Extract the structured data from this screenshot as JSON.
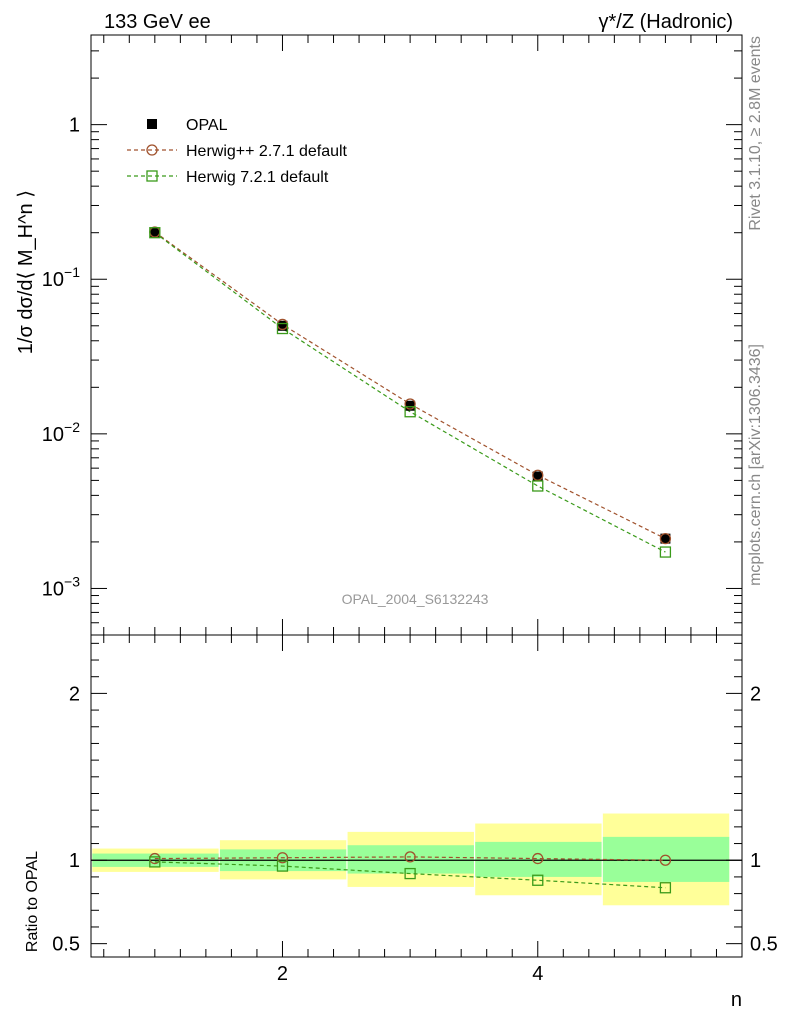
{
  "header": {
    "left": "133 GeV ee",
    "right": "γ*/Z (Hadronic)"
  },
  "side_text": {
    "rivet": "Rivet 3.1.10, ≥ 2.8M events",
    "mcplots": "mcplots.cern.ch [arXiv:1306.3436]"
  },
  "watermark": "OPAL_2004_S6132243",
  "chart_data": [
    {
      "type": "scatter",
      "panel": "main",
      "ylabel": "1/σ dσ/d⟨ M_H^n ⟩",
      "yscale": "log",
      "xlim": [
        0.5,
        5.6
      ],
      "ylim": [
        0.0005,
        3.8
      ],
      "ytick_labels": [
        "10^-3",
        "10^-2",
        "10^-1",
        "1"
      ],
      "x": [
        1,
        2,
        3,
        4,
        5
      ],
      "series": [
        {
          "name": "OPAL",
          "values": [
            0.2,
            0.05,
            0.0152,
            0.0053,
            0.0021
          ],
          "color": "#000000",
          "marker": "filled-square"
        },
        {
          "name": "Herwig++ 2.7.1 default",
          "values": [
            0.202,
            0.051,
            0.0156,
            0.0054,
            0.0021
          ],
          "color": "#a0522d",
          "marker": "open-circle",
          "line": "dashed"
        },
        {
          "name": "Herwig 7.2.1 default",
          "values": [
            0.2,
            0.048,
            0.0139,
            0.0046,
            0.00172
          ],
          "color": "#3a9a1a",
          "marker": "open-square",
          "line": "dashed"
        }
      ],
      "legend_position": "top-left"
    },
    {
      "type": "line",
      "panel": "ratio",
      "ylabel": "Ratio to OPAL",
      "xlabel": "n",
      "xlim": [
        0.5,
        5.6
      ],
      "ylim": [
        0.42,
        2.35
      ],
      "x_tick_labels": [
        "2",
        "4"
      ],
      "y_tick_labels": [
        "0.5",
        "1",
        "2"
      ],
      "x": [
        1,
        2,
        3,
        4,
        5
      ],
      "bands": {
        "bin_edges": [
          0.5,
          1.5,
          2.5,
          3.5,
          4.5,
          5.5
        ],
        "inner": [
          [
            0.96,
            1.04
          ],
          [
            0.935,
            1.065
          ],
          [
            0.92,
            1.09
          ],
          [
            0.9,
            1.11
          ],
          [
            0.87,
            1.14
          ]
        ],
        "outer": [
          [
            0.93,
            1.07
          ],
          [
            0.885,
            1.12
          ],
          [
            0.84,
            1.17
          ],
          [
            0.79,
            1.22
          ],
          [
            0.73,
            1.28
          ]
        ],
        "inner_color": "#99ff99",
        "outer_color": "#ffff99"
      },
      "series": [
        {
          "name": "Herwig++ 2.7.1 default",
          "values": [
            1.01,
            1.015,
            1.02,
            1.01,
            1.0
          ],
          "color": "#a0522d",
          "marker": "open-circle",
          "line": "dashed"
        },
        {
          "name": "Herwig 7.2.1 default",
          "values": [
            0.99,
            0.965,
            0.92,
            0.88,
            0.835
          ],
          "color": "#3a9a1a",
          "marker": "open-square",
          "line": "dashed"
        }
      ],
      "reference_line": 1
    }
  ]
}
